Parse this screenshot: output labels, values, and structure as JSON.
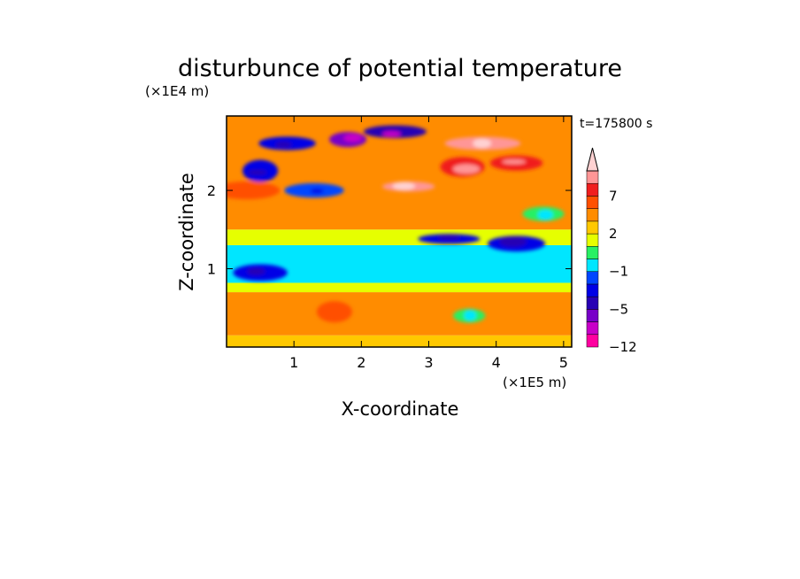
{
  "chart_data": {
    "type": "heatmap",
    "title": "disturbunce of potential temperature",
    "xlabel": "X-coordinate",
    "ylabel": "Z-coordinate",
    "x_unit": "(×1E5 m)",
    "y_unit": "(×1E4 m)",
    "time_label": "t=175800 s",
    "xlim": [
      0,
      5.12
    ],
    "ylim": [
      0,
      2.95
    ],
    "x_ticks": [
      1,
      2,
      3,
      4,
      5
    ],
    "y_ticks": [
      1,
      2
    ],
    "x_tick_labels": [
      "1",
      "2",
      "3",
      "4",
      "5"
    ],
    "y_tick_labels": [
      "1",
      "2"
    ],
    "colorbar": {
      "labels": [
        "7",
        "2",
        "−1",
        "−5",
        "−12"
      ],
      "label_levels": [
        7,
        2,
        -1,
        -5,
        -12
      ],
      "levels": [
        -12,
        -9,
        -7,
        -5,
        -3,
        -2,
        -1,
        0,
        1,
        2,
        3,
        5,
        7,
        9
      ],
      "colors": [
        "#ff00a0",
        "#c800c8",
        "#7800c8",
        "#2800b4",
        "#0000e6",
        "#0046ff",
        "#00e6ff",
        "#28f064",
        "#e6ff00",
        "#ffc800",
        "#ff8c00",
        "#ff5000",
        "#f01e1e",
        "#ff9696",
        "#ffd2d2"
      ]
    },
    "z_bands": [
      {
        "z": [
          0.0,
          0.15
        ],
        "value": 1
      },
      {
        "z": [
          0.15,
          0.7
        ],
        "value": 2.5
      },
      {
        "z": [
          0.7,
          0.82
        ],
        "value": 0.5
      },
      {
        "z": [
          0.82,
          1.3
        ],
        "value": -1.5
      },
      {
        "z": [
          1.3,
          1.5
        ],
        "value": 0.5
      },
      {
        "z": [
          1.5,
          2.95
        ],
        "value": 2
      }
    ],
    "features": [
      {
        "x": 0.5,
        "z": 0.95,
        "value": -4
      },
      {
        "x": 1.6,
        "z": 0.45,
        "value": 3.5
      },
      {
        "x": 3.3,
        "z": 1.38,
        "value": -5
      },
      {
        "x": 4.3,
        "z": 1.32,
        "value": -5
      },
      {
        "x": 1.8,
        "z": 2.65,
        "value": -8
      },
      {
        "x": 2.5,
        "z": 2.75,
        "value": -7
      },
      {
        "x": 0.9,
        "z": 2.6,
        "value": -5
      },
      {
        "x": 0.5,
        "z": 2.25,
        "value": -5
      },
      {
        "x": 1.3,
        "z": 2.0,
        "value": -3
      },
      {
        "x": 2.7,
        "z": 2.05,
        "value": 7
      },
      {
        "x": 3.8,
        "z": 2.6,
        "value": 7
      },
      {
        "x": 4.3,
        "z": 2.35,
        "value": 5
      },
      {
        "x": 3.5,
        "z": 2.3,
        "value": 5
      },
      {
        "x": 0.3,
        "z": 2.0,
        "value": 3
      },
      {
        "x": 4.7,
        "z": 1.7,
        "value": -1
      },
      {
        "x": 3.6,
        "z": 0.4,
        "value": -1
      }
    ]
  }
}
